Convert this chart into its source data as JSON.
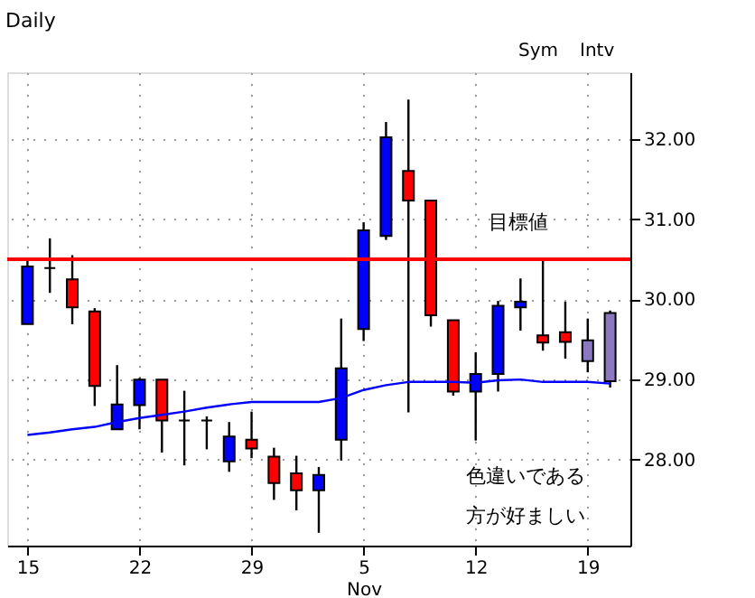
{
  "chart_data": {
    "type": "candlestick",
    "title": "Daily",
    "categories": [
      "15",
      null,
      null,
      null,
      null,
      "22",
      null,
      null,
      null,
      null,
      "29",
      null,
      null,
      null,
      null,
      "5\nNov",
      null,
      null,
      null,
      null,
      "12",
      null,
      null,
      null,
      null,
      "19",
      null
    ],
    "ohlc": [
      [
        29.69,
        30.51,
        29.69,
        30.41
      ],
      [
        30.39,
        30.76,
        30.08,
        30.39
      ],
      [
        30.25,
        30.55,
        29.69,
        29.9
      ],
      [
        29.85,
        29.89,
        28.67,
        28.92
      ],
      [
        28.38,
        29.18,
        28.38,
        28.69
      ],
      [
        28.68,
        29.02,
        28.38,
        29.0
      ],
      [
        29.0,
        29.0,
        28.09,
        28.49
      ],
      [
        28.49,
        28.86,
        27.93,
        28.49
      ],
      [
        28.49,
        28.54,
        28.13,
        28.49
      ],
      [
        27.98,
        28.47,
        27.85,
        28.29
      ],
      [
        28.25,
        28.6,
        28.02,
        28.14
      ],
      [
        28.04,
        28.15,
        27.5,
        27.71
      ],
      [
        27.83,
        28.05,
        27.37,
        27.62
      ],
      [
        27.62,
        27.91,
        27.09,
        27.81
      ],
      [
        28.25,
        29.76,
        27.99,
        29.14
      ],
      [
        29.63,
        30.96,
        29.48,
        30.86
      ],
      [
        30.79,
        32.21,
        30.74,
        32.02
      ],
      [
        31.6,
        32.49,
        28.59,
        31.23
      ],
      [
        31.23,
        31.23,
        29.66,
        29.8
      ],
      [
        29.74,
        29.74,
        28.8,
        28.85
      ],
      [
        28.85,
        29.34,
        28.24,
        29.07
      ],
      [
        29.07,
        29.98,
        28.85,
        29.92
      ],
      [
        29.9,
        30.26,
        29.61,
        29.97
      ],
      [
        29.55,
        30.52,
        29.36,
        29.46
      ],
      [
        29.59,
        29.97,
        29.26,
        29.47
      ],
      [
        29.23,
        29.76,
        29.09,
        29.49
      ],
      [
        28.98,
        29.86,
        28.9,
        29.83
      ]
    ],
    "colors": [
      "#0000ff",
      "#000000",
      "#ff0000",
      "#ff0000",
      "#0000ff",
      "#0000ff",
      "#ff0000",
      "#000000",
      "#000000",
      "#0000ff",
      "#ff0000",
      "#ff0000",
      "#ff0000",
      "#0000ff",
      "#0000ff",
      "#0000ff",
      "#0000ff",
      "#ff0000",
      "#ff0000",
      "#ff0000",
      "#0000ff",
      "#0000ff",
      "#0000ff",
      "#ff0000",
      "#ff0000",
      "#8b78c0",
      "#8b78c0"
    ],
    "series": [
      {
        "type": "line",
        "color": "#0000ff",
        "values": [
          28.31,
          28.34,
          28.38,
          28.41,
          28.47,
          28.52,
          28.56,
          28.6,
          28.65,
          28.69,
          28.72,
          28.72,
          28.72,
          28.72,
          28.77,
          28.87,
          28.93,
          28.97,
          28.97,
          28.97,
          28.96,
          28.99,
          29.0,
          28.97,
          28.97,
          28.97,
          28.95
        ]
      }
    ],
    "ylim": [
      26.93,
      32.83
    ],
    "yticks": [
      {
        "value": 28,
        "label": "28.00"
      },
      {
        "value": 29,
        "label": "29.00"
      },
      {
        "value": 30,
        "label": "30.00"
      },
      {
        "value": 31,
        "label": "31.00"
      },
      {
        "value": 32,
        "label": "32.00"
      }
    ],
    "ref_lines": [
      {
        "axis": "y",
        "value": 30.5,
        "label": "目標値",
        "color": "#ff0000"
      }
    ],
    "annotations": [
      "Sym",
      "Intv",
      "色違いである",
      "方が好ましい"
    ],
    "grid": true
  }
}
